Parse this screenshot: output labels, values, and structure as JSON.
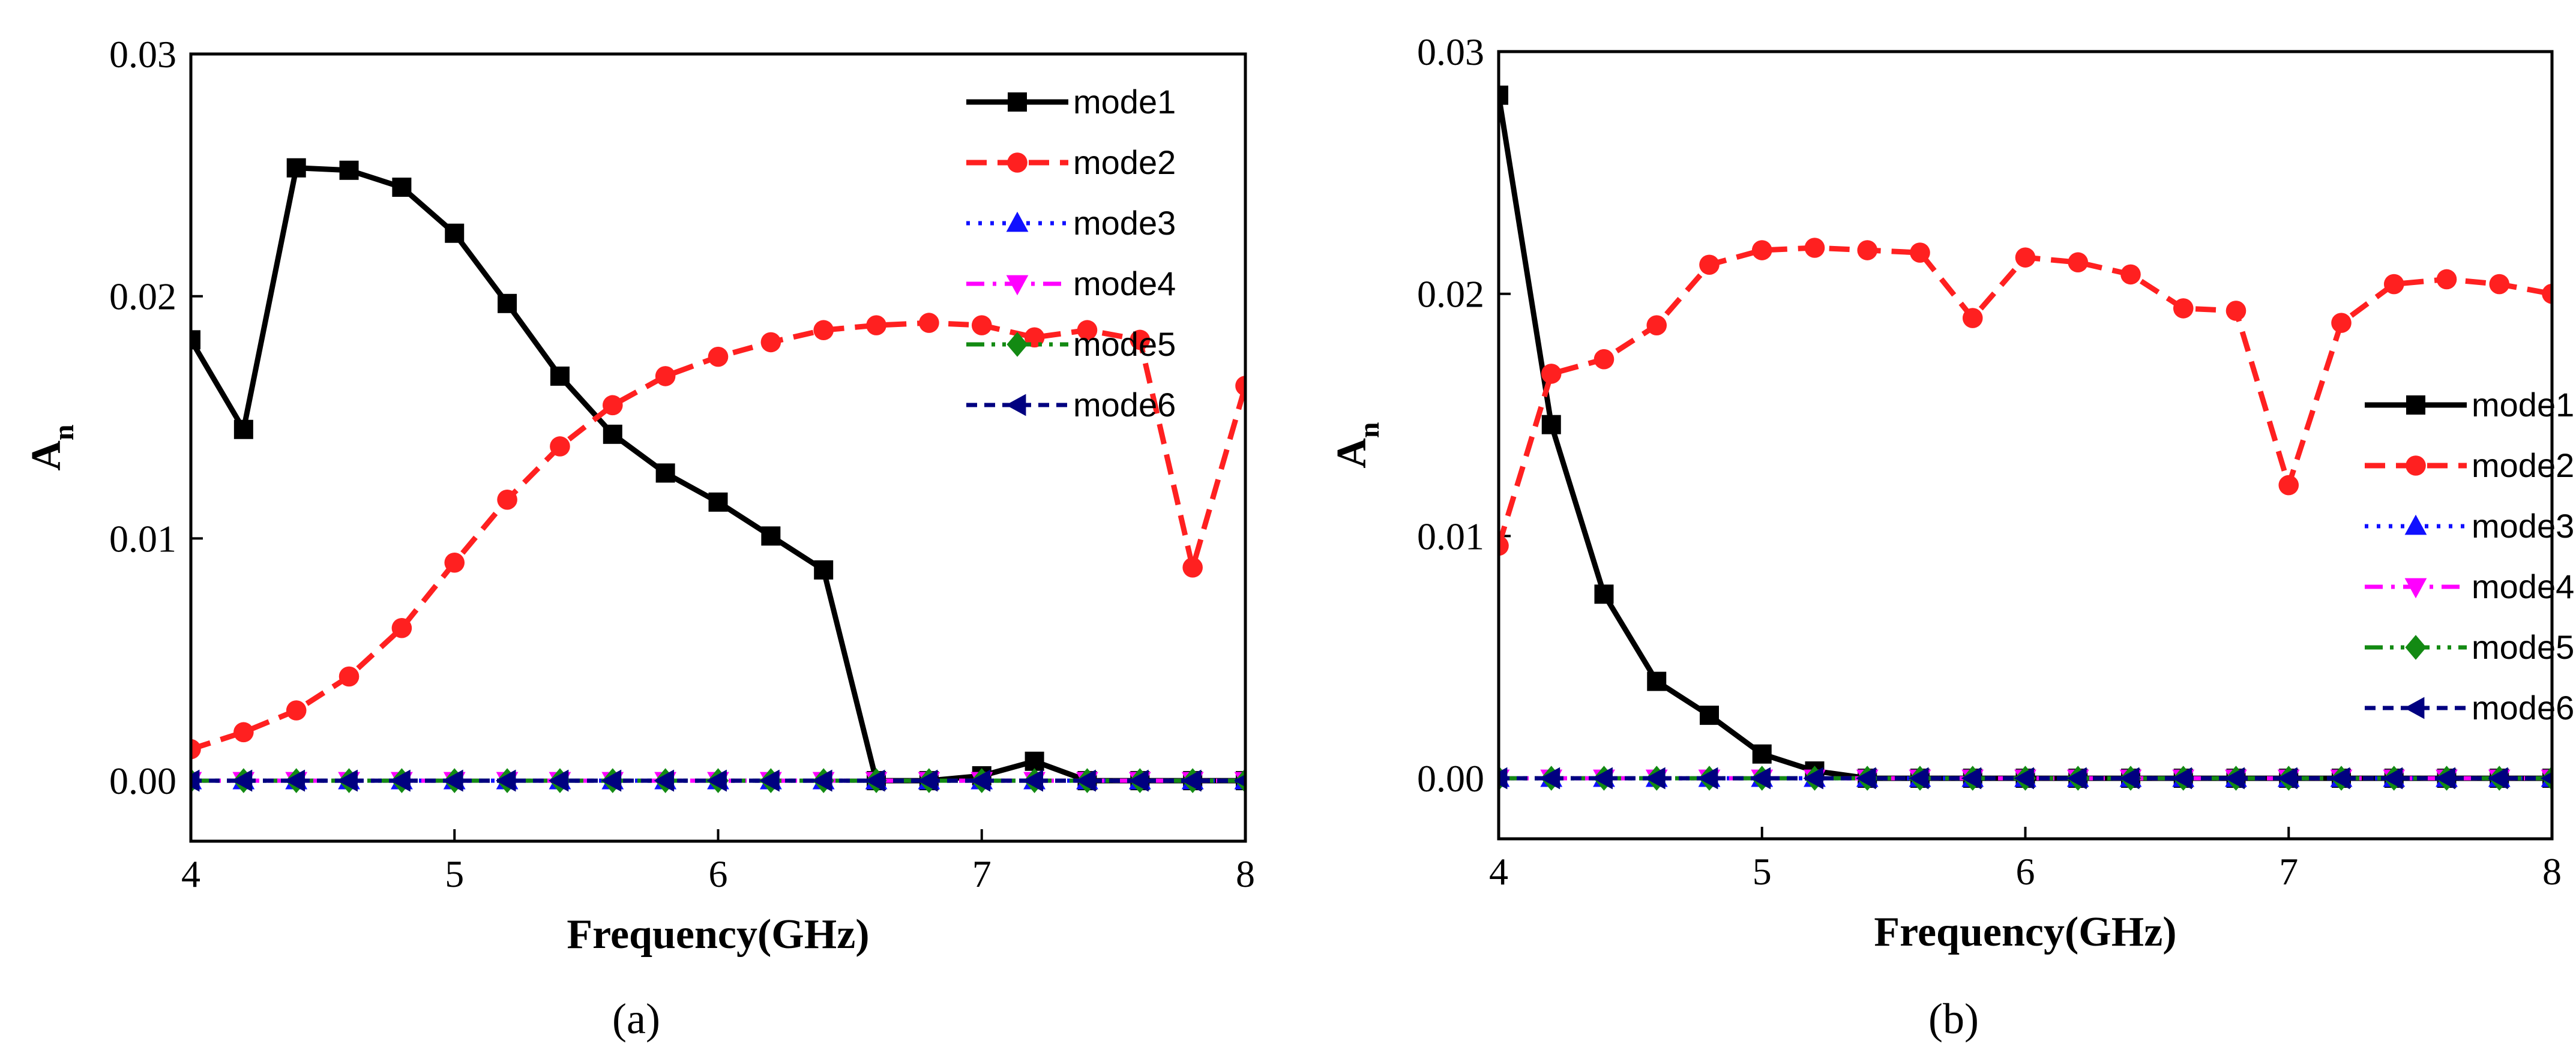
{
  "chart_data": [
    {
      "type": "line",
      "panel_label": "(a)",
      "xlabel": "Frequency(GHz)",
      "ylabel": "A",
      "ylabel_sub": "n",
      "xlim": [
        4,
        8
      ],
      "ylim": [
        -0.0025,
        0.03
      ],
      "xticks": [
        4,
        5,
        6,
        7,
        8
      ],
      "xtick_labels": [
        "4",
        "5",
        "6",
        "7",
        "8"
      ],
      "yticks": [
        0,
        0.01,
        0.02,
        0.03
      ],
      "ytick_labels": [
        "0.00",
        "0.01",
        "0.02",
        "0.03"
      ],
      "legend_position": "top-right",
      "x": [
        4.0,
        4.2,
        4.4,
        4.6,
        4.8,
        5.0,
        5.2,
        5.4,
        5.6,
        5.8,
        6.0,
        6.2,
        6.4,
        6.6,
        6.8,
        7.0,
        7.2,
        7.4,
        7.6,
        7.8,
        8.0
      ],
      "series": [
        {
          "name": "mode1",
          "color": "#000000",
          "dash": "solid",
          "marker": "square",
          "values": [
            0.0182,
            0.0145,
            0.0253,
            0.0252,
            0.0245,
            0.0226,
            0.0197,
            0.0167,
            0.0143,
            0.0127,
            0.0115,
            0.0101,
            0.0087,
            0.0,
            0.0,
            0.0002,
            0.0008,
            0.0,
            0.0,
            0.0,
            0.0
          ]
        },
        {
          "name": "mode2",
          "color": "#ff2020",
          "dash": "dash",
          "marker": "circle",
          "values": [
            0.0013,
            0.002,
            0.0029,
            0.0043,
            0.0063,
            0.009,
            0.0116,
            0.0138,
            0.0155,
            0.0167,
            0.0175,
            0.0181,
            0.0186,
            0.0188,
            0.0189,
            0.0188,
            0.0183,
            0.0186,
            0.0182,
            0.0088,
            0.0163
          ]
        },
        {
          "name": "mode3",
          "color": "#1010ff",
          "dash": "dot",
          "marker": "triangle-up",
          "values": [
            0,
            0,
            0,
            0,
            0,
            0,
            0,
            0,
            0,
            0,
            0,
            0,
            0,
            0,
            0,
            0,
            0,
            0,
            0,
            0,
            0
          ]
        },
        {
          "name": "mode4",
          "color": "#ff00ff",
          "dash": "dashdot",
          "marker": "triangle-down",
          "values": [
            0,
            0,
            0,
            0,
            0,
            0,
            0,
            0,
            0,
            0,
            0,
            0,
            0,
            0,
            0,
            0,
            0,
            0,
            0,
            0,
            0
          ]
        },
        {
          "name": "mode5",
          "color": "#138a13",
          "dash": "dashdotdot",
          "marker": "diamond",
          "values": [
            0,
            0,
            0,
            0,
            0,
            0,
            0,
            0,
            0,
            0,
            0,
            0,
            0,
            0,
            0,
            0,
            0,
            0,
            0,
            0,
            0
          ]
        },
        {
          "name": "mode6",
          "color": "#000080",
          "dash": "shortdash",
          "marker": "triangle-left",
          "values": [
            0,
            0,
            0,
            0,
            0,
            0,
            0,
            0,
            0,
            0,
            0,
            0,
            0,
            0,
            0,
            0,
            0,
            0,
            0,
            0,
            0
          ]
        }
      ]
    },
    {
      "type": "line",
      "panel_label": "(b)",
      "xlabel": "Frequency(GHz)",
      "ylabel": "A",
      "ylabel_sub": "n",
      "xlim": [
        4,
        8
      ],
      "ylim": [
        -0.0025,
        0.03
      ],
      "xticks": [
        4,
        5,
        6,
        7,
        8
      ],
      "xtick_labels": [
        "4",
        "5",
        "6",
        "7",
        "8"
      ],
      "yticks": [
        0,
        0.01,
        0.02,
        0.03
      ],
      "ytick_labels": [
        "0.00",
        "0.01",
        "0.02",
        "0.03"
      ],
      "legend_position": "bottom-right",
      "x": [
        4.0,
        4.2,
        4.4,
        4.6,
        4.8,
        5.0,
        5.2,
        5.4,
        5.6,
        5.8,
        6.0,
        6.2,
        6.4,
        6.6,
        6.8,
        7.0,
        7.2,
        7.4,
        7.6,
        7.8,
        8.0
      ],
      "series": [
        {
          "name": "mode1",
          "color": "#000000",
          "dash": "solid",
          "marker": "square",
          "values": [
            0.0282,
            0.0146,
            0.0076,
            0.004,
            0.0026,
            0.001,
            0.0003,
            0.0,
            0.0,
            0.0,
            0.0,
            0.0,
            0.0,
            0.0,
            0.0,
            0.0,
            0.0,
            0.0,
            0.0,
            0.0,
            0.0
          ]
        },
        {
          "name": "mode2",
          "color": "#ff2020",
          "dash": "dash",
          "marker": "circle",
          "values": [
            0.0096,
            0.0167,
            0.0173,
            0.0187,
            0.0212,
            0.0218,
            0.0219,
            0.0218,
            0.0217,
            0.019,
            0.0215,
            0.0213,
            0.0208,
            0.0194,
            0.0193,
            0.0121,
            0.0188,
            0.0204,
            0.0206,
            0.0204,
            0.02
          ]
        },
        {
          "name": "mode3",
          "color": "#1010ff",
          "dash": "dot",
          "marker": "triangle-up",
          "values": [
            0,
            0,
            0,
            0,
            0,
            0,
            0,
            0,
            0,
            0,
            0,
            0,
            0,
            0,
            0,
            0,
            0,
            0,
            0,
            0,
            0
          ]
        },
        {
          "name": "mode4",
          "color": "#ff00ff",
          "dash": "dashdot",
          "marker": "triangle-down",
          "values": [
            0,
            0,
            0,
            0,
            0,
            0,
            0,
            0,
            0,
            0,
            0,
            0,
            0,
            0,
            0,
            0,
            0,
            0,
            0,
            0,
            0
          ]
        },
        {
          "name": "mode5",
          "color": "#138a13",
          "dash": "dashdotdot",
          "marker": "diamond",
          "values": [
            0,
            0,
            0,
            0,
            0,
            0,
            0,
            0,
            0,
            0,
            0,
            0,
            0,
            0,
            0,
            0,
            0,
            0,
            0,
            0,
            0
          ]
        },
        {
          "name": "mode6",
          "color": "#000080",
          "dash": "shortdash",
          "marker": "triangle-left",
          "values": [
            0,
            0,
            0,
            0,
            0,
            0,
            0,
            0,
            0,
            0,
            0,
            0,
            0,
            0,
            0,
            0,
            0,
            0,
            0,
            0,
            0
          ]
        }
      ]
    }
  ]
}
